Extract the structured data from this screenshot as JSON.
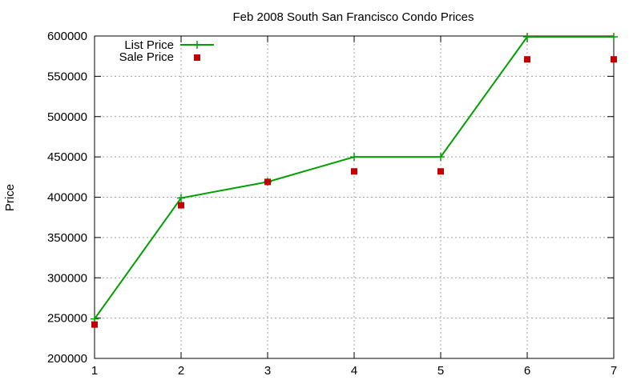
{
  "chart_data": {
    "type": "line",
    "title": "Feb 2008 South San Francisco Condo Prices",
    "xlabel": "",
    "ylabel": "Price",
    "x": [
      1,
      2,
      3,
      4,
      5,
      6,
      7
    ],
    "xlim": [
      1,
      7
    ],
    "ylim": [
      200000,
      600000
    ],
    "xticks": [
      "1",
      "2",
      "3",
      "4",
      "5",
      "6",
      "7"
    ],
    "yticks": [
      "200000",
      "250000",
      "300000",
      "350000",
      "400000",
      "450000",
      "500000",
      "550000",
      "600000"
    ],
    "grid": true,
    "legend_position": "top-left",
    "series": [
      {
        "name": "List Price",
        "style": "line-plus",
        "color": "#00a000",
        "values": [
          249000,
          399000,
          419000,
          450000,
          450000,
          599000,
          599000
        ]
      },
      {
        "name": "Sale Price",
        "style": "square-points",
        "color": "#c00000",
        "values": [
          242000,
          390000,
          419000,
          432000,
          432000,
          571000,
          571000
        ]
      }
    ]
  }
}
